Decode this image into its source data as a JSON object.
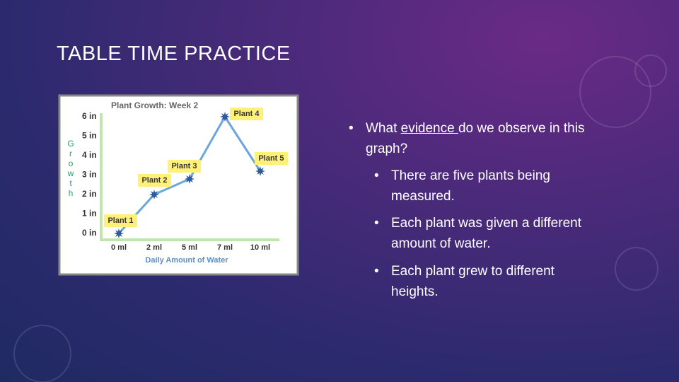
{
  "title": "TABLE TIME PRACTICE",
  "bullets": [
    {
      "level": 1,
      "parts": [
        "What ",
        "evidence ",
        " do we observe in this graph?"
      ]
    },
    {
      "level": 2,
      "text": "There are five plants being measured."
    },
    {
      "level": 2,
      "text": "Each plant was given a different amount of water."
    },
    {
      "level": 2,
      "text": "Each plant grew to different heights."
    }
  ],
  "chart_data": {
    "type": "line",
    "title": "Plant Growth: Week 2",
    "x_label": "Daily Amount of Water",
    "y_label": "Growth",
    "categories": [
      "0 ml",
      "2 ml",
      "5 ml",
      "7 ml",
      "10 ml"
    ],
    "values": [
      0,
      2,
      2.8,
      6,
      3.2
    ],
    "labels": [
      "Plant 1",
      "Plant 2",
      "Plant 3",
      "Plant 4",
      "Plant 5"
    ],
    "color": "#6aa6dc",
    "marker_color": "#2c5a9c",
    "ylim": [
      -0.3,
      6.3
    ],
    "yticks": [
      {
        "value": 0,
        "label": "0 in"
      },
      {
        "value": 1,
        "label": "1 in"
      },
      {
        "value": 2,
        "label": "2 in"
      },
      {
        "value": 3,
        "label": "3 in"
      },
      {
        "value": 4,
        "label": "4 in"
      },
      {
        "value": 5,
        "label": "5 in"
      },
      {
        "value": 6,
        "label": "6 in"
      }
    ],
    "grid": false
  }
}
